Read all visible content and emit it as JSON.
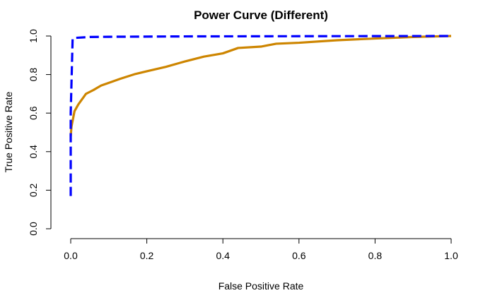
{
  "chart_data": {
    "type": "line",
    "title": "Power Curve (Different)",
    "xlabel": "False Positive Rate",
    "ylabel": "True Positive Rate",
    "xlim": [
      0,
      1
    ],
    "ylim": [
      0,
      1
    ],
    "x_ticks": [
      "0.0",
      "0.2",
      "0.4",
      "0.6",
      "0.8",
      "1.0"
    ],
    "y_ticks": [
      "0.0",
      "0.2",
      "0.4",
      "0.6",
      "0.8",
      "1.0"
    ],
    "grid": false,
    "legend": "none",
    "series": [
      {
        "color": "#CD8500",
        "style": "solid",
        "points": [
          {
            "x": 0.0,
            "y": 0.48
          },
          {
            "x": 0.002,
            "y": 0.53
          },
          {
            "x": 0.01,
            "y": 0.61
          },
          {
            "x": 0.02,
            "y": 0.645
          },
          {
            "x": 0.04,
            "y": 0.7
          },
          {
            "x": 0.06,
            "y": 0.72
          },
          {
            "x": 0.08,
            "y": 0.743
          },
          {
            "x": 0.1,
            "y": 0.757
          },
          {
            "x": 0.13,
            "y": 0.778
          },
          {
            "x": 0.17,
            "y": 0.803
          },
          {
            "x": 0.2,
            "y": 0.817
          },
          {
            "x": 0.25,
            "y": 0.84
          },
          {
            "x": 0.3,
            "y": 0.868
          },
          {
            "x": 0.35,
            "y": 0.893
          },
          {
            "x": 0.4,
            "y": 0.91
          },
          {
            "x": 0.44,
            "y": 0.938
          },
          {
            "x": 0.5,
            "y": 0.945
          },
          {
            "x": 0.54,
            "y": 0.96
          },
          {
            "x": 0.6,
            "y": 0.965
          },
          {
            "x": 0.7,
            "y": 0.978
          },
          {
            "x": 0.8,
            "y": 0.987
          },
          {
            "x": 0.9,
            "y": 0.995
          },
          {
            "x": 1.0,
            "y": 1.0
          }
        ]
      },
      {
        "color": "#0000FF",
        "style": "dashed",
        "points": [
          {
            "x": 0.0,
            "y": 0.17
          },
          {
            "x": 0.0,
            "y": 0.6
          },
          {
            "x": 0.005,
            "y": 0.985
          },
          {
            "x": 0.01,
            "y": 0.99
          },
          {
            "x": 0.05,
            "y": 0.995
          },
          {
            "x": 0.1,
            "y": 0.996
          },
          {
            "x": 0.3,
            "y": 0.998
          },
          {
            "x": 0.6,
            "y": 0.999
          },
          {
            "x": 1.0,
            "y": 1.0
          }
        ]
      }
    ]
  }
}
